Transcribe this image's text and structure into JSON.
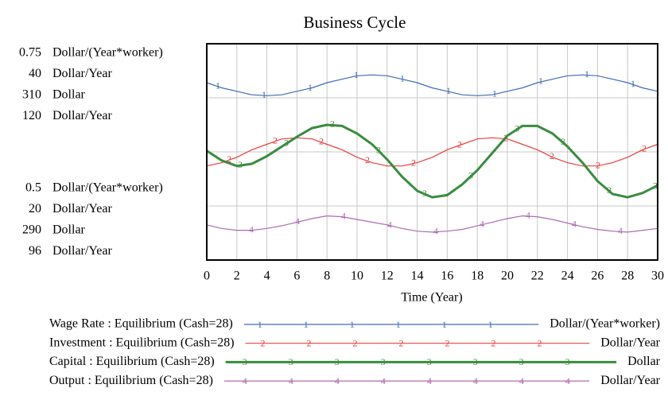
{
  "chart_data": {
    "type": "line",
    "title": "Business Cycle",
    "x_label": "Time (Year)",
    "x": [
      0,
      1,
      2,
      3,
      4,
      5,
      6,
      7,
      8,
      9,
      10,
      11,
      12,
      13,
      14,
      15,
      16,
      17,
      18,
      19,
      20,
      21,
      22,
      23,
      24,
      25,
      26,
      27,
      28,
      29,
      30
    ],
    "xlim": [
      0,
      30
    ],
    "xticks": [
      0,
      2,
      4,
      6,
      8,
      10,
      12,
      14,
      16,
      18,
      20,
      22,
      24,
      26,
      28,
      30
    ],
    "series": [
      {
        "name": "Wage Rate : Equilibrium (Cash=28)",
        "marker": "1",
        "unit": "Dollar/(Year*worker)",
        "color": "#3f6db3",
        "ylim": [
          0.5,
          0.75
        ],
        "yticks": [
          0.5,
          0.75
        ],
        "values": [
          0.705,
          0.699,
          0.695,
          0.691,
          0.69,
          0.691,
          0.695,
          0.699,
          0.705,
          0.709,
          0.713,
          0.714,
          0.713,
          0.709,
          0.705,
          0.699,
          0.695,
          0.691,
          0.69,
          0.691,
          0.695,
          0.699,
          0.705,
          0.709,
          0.713,
          0.714,
          0.713,
          0.709,
          0.705,
          0.699,
          0.695
        ]
      },
      {
        "name": "Investment : Equilibrium (Cash=28)",
        "marker": "2",
        "unit": "Dollar/Year",
        "color": "#e8403c",
        "ylim": [
          20,
          40
        ],
        "yticks": [
          20,
          40
        ],
        "values": [
          28.7,
          29.0,
          29.5,
          30.2,
          30.7,
          31.2,
          31.3,
          31.2,
          30.7,
          30.2,
          29.5,
          29.0,
          28.7,
          28.7,
          29.0,
          29.5,
          30.2,
          30.7,
          31.2,
          31.3,
          31.2,
          30.7,
          30.2,
          29.5,
          29.0,
          28.7,
          28.7,
          29.0,
          29.5,
          30.2,
          30.7
        ]
      },
      {
        "name": "Capital : Equilibrium (Cash=28)",
        "marker": "3",
        "unit": "Dollar",
        "color": "#3a8c3f",
        "ylim": [
          290,
          310
        ],
        "yticks": [
          290,
          310
        ],
        "values": [
          300.1,
          299.2,
          298.7,
          298.9,
          299.6,
          300.5,
          301.4,
          302.2,
          302.5,
          302.4,
          301.7,
          300.7,
          299.3,
          297.7,
          296.4,
          295.8,
          296.0,
          297.0,
          298.3,
          299.9,
          301.5,
          302.4,
          302.4,
          301.7,
          300.5,
          299.0,
          297.3,
          296.1,
          295.8,
          296.2,
          296.9
        ]
      },
      {
        "name": "Output : Equilibrium (Cash=28)",
        "marker": "4",
        "unit": "Dollar/Year",
        "color": "#b06ab3",
        "ylim": [
          96,
          120
        ],
        "yticks": [
          96,
          120
        ],
        "values": [
          99.9,
          99.5,
          99.3,
          99.3,
          99.5,
          99.8,
          100.2,
          100.6,
          100.9,
          100.8,
          100.5,
          100.2,
          99.9,
          99.5,
          99.2,
          99.1,
          99.2,
          99.4,
          99.8,
          100.2,
          100.6,
          100.9,
          100.8,
          100.5,
          100.1,
          99.7,
          99.4,
          99.2,
          99.1,
          99.3,
          99.5
        ]
      }
    ]
  }
}
